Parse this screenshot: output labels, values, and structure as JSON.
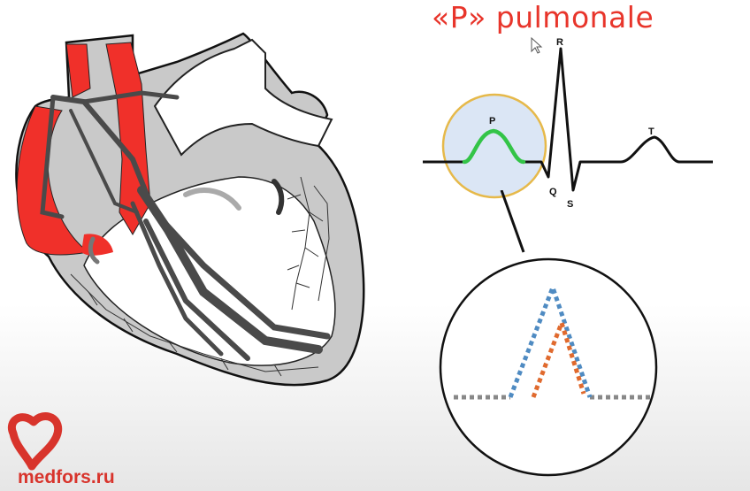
{
  "title": "«P» pulmonale",
  "brand": {
    "name": "medfors.ru"
  },
  "ecg": {
    "labels": {
      "p": "P",
      "q": "Q",
      "r": "R",
      "s": "S",
      "t": "T"
    }
  },
  "colors": {
    "title": "#e8352b",
    "right_heart": "#f0302a",
    "conduction": "#4a4a4a",
    "p_wave_highlight": "#33c447",
    "magnifier_fill": "#dbe6f5",
    "magnifier_border": "#e6b94a",
    "normal_p_dotted": "#4f8bc2",
    "pulmonale_p_dotted": "#e06a2e",
    "baseline_dotted": "#888888"
  },
  "icons": [
    "mouse-cursor-icon",
    "medfors-heart-logo-icon"
  ]
}
